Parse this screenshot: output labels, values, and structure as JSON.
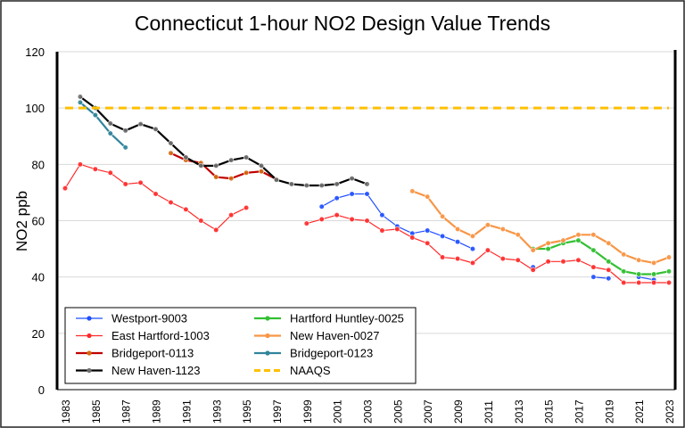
{
  "chart_data": {
    "type": "line",
    "title": "Connecticut 1-hour NO2 Design Value Trends",
    "xlabel": "",
    "ylabel": "NO2 ppb",
    "xlim": [
      1983,
      2023
    ],
    "ylim": [
      0,
      120
    ],
    "yticks": [
      0,
      20,
      40,
      60,
      80,
      100,
      120
    ],
    "xticks": [
      1983,
      1985,
      1987,
      1989,
      1991,
      1993,
      1995,
      1997,
      1999,
      2001,
      2003,
      2005,
      2007,
      2009,
      2011,
      2013,
      2015,
      2017,
      2019,
      2021,
      2023
    ],
    "grid": true,
    "legend": "bottom-left",
    "series": [
      {
        "name": "Westport-9003",
        "color": "#1f4fff",
        "width": 1.2,
        "points": [
          [
            2000,
            65
          ],
          [
            2001,
            68
          ],
          [
            2002,
            69.5
          ],
          [
            2003,
            69.5
          ],
          [
            2004,
            62
          ],
          [
            2005,
            58
          ],
          [
            2006,
            55.5
          ],
          [
            2007,
            56.5
          ],
          [
            2008,
            54.5
          ],
          [
            2009,
            52.5
          ],
          [
            2010,
            50
          ],
          null,
          [
            2014,
            43.5
          ],
          null,
          [
            2018,
            40
          ],
          [
            2019,
            39.5
          ],
          null,
          [
            2021,
            40
          ],
          [
            2022,
            39
          ]
        ]
      },
      {
        "name": "East Hartford-1003",
        "color": "#ff2a2a",
        "width": 1.2,
        "points": [
          [
            1983,
            71.5
          ],
          [
            1984,
            80
          ],
          [
            1985,
            78.3
          ],
          [
            1986,
            77
          ],
          [
            1987,
            73
          ],
          [
            1988,
            73.5
          ],
          [
            1989,
            69.5
          ],
          [
            1990,
            66.5
          ],
          [
            1991,
            64
          ],
          [
            1992,
            60
          ],
          [
            1993,
            56.7
          ],
          [
            1994,
            62
          ],
          [
            1995,
            64.6
          ],
          null,
          [
            1999,
            59
          ],
          [
            2000,
            60.5
          ],
          [
            2001,
            62
          ],
          [
            2002,
            60.5
          ],
          [
            2003,
            60
          ],
          [
            2004,
            56.5
          ],
          [
            2005,
            57
          ],
          [
            2006,
            54
          ],
          [
            2007,
            52
          ],
          [
            2008,
            47
          ],
          [
            2009,
            46.5
          ],
          [
            2010,
            45
          ],
          [
            2011,
            49.5
          ],
          [
            2012,
            46.5
          ],
          [
            2013,
            46
          ],
          [
            2014,
            42.5
          ],
          [
            2015,
            45.5
          ],
          [
            2016,
            45.5
          ],
          [
            2017,
            46
          ],
          [
            2018,
            43.5
          ],
          [
            2019,
            42.5
          ],
          [
            2020,
            38
          ],
          [
            2021,
            38
          ],
          [
            2022,
            38
          ],
          [
            2023,
            38
          ]
        ]
      },
      {
        "name": "Bridgeport-0113",
        "color": "#c00000",
        "marker": "#d46a10",
        "width": 2.2,
        "points": [
          [
            1990,
            84
          ],
          [
            1991,
            81.5
          ],
          [
            1992,
            80.5
          ],
          [
            1993,
            75.5
          ],
          [
            1994,
            75
          ],
          [
            1995,
            77
          ],
          [
            1996,
            77.5
          ],
          [
            1997,
            74.7
          ]
        ]
      },
      {
        "name": "New Haven-1123",
        "color": "#000000",
        "marker": "#707070",
        "width": 2.2,
        "points": [
          [
            1984,
            104
          ],
          [
            1985,
            100
          ],
          [
            1986,
            94.5
          ],
          [
            1987,
            92
          ],
          [
            1988,
            94.3
          ],
          [
            1989,
            92.5
          ],
          [
            1990,
            87.5
          ],
          [
            1991,
            82.5
          ],
          [
            1992,
            79.5
          ],
          [
            1993,
            79.5
          ],
          [
            1994,
            81.5
          ],
          [
            1995,
            82.5
          ],
          [
            1996,
            79.5
          ],
          [
            1997,
            74.5
          ],
          [
            1998,
            73
          ],
          [
            1999,
            72.5
          ],
          [
            2000,
            72.5
          ],
          [
            2001,
            73
          ],
          [
            2002,
            75
          ],
          [
            2003,
            73
          ]
        ]
      },
      {
        "name": "Hartford Huntley-0025",
        "color": "#33c033",
        "width": 2.2,
        "points": [
          [
            2014,
            50
          ],
          [
            2015,
            50
          ],
          [
            2016,
            52
          ],
          [
            2017,
            53
          ],
          [
            2018,
            49.5
          ],
          [
            2019,
            45.5
          ],
          [
            2020,
            42
          ],
          [
            2021,
            41
          ],
          [
            2022,
            41
          ],
          [
            2023,
            42
          ]
        ]
      },
      {
        "name": "New Haven-0027",
        "color": "#f79646",
        "width": 2.2,
        "points": [
          [
            2006,
            70.5
          ],
          [
            2007,
            68.5
          ],
          [
            2008,
            61.5
          ],
          [
            2009,
            57
          ],
          [
            2010,
            54.5
          ],
          [
            2011,
            58.5
          ],
          [
            2012,
            57
          ],
          [
            2013,
            55
          ],
          [
            2014,
            49.5
          ],
          [
            2015,
            52
          ],
          [
            2016,
            53
          ],
          [
            2017,
            55
          ],
          [
            2018,
            55
          ],
          [
            2019,
            52
          ],
          [
            2020,
            48
          ],
          [
            2021,
            46
          ],
          [
            2022,
            45
          ],
          [
            2023,
            47
          ]
        ]
      },
      {
        "name": "Bridgeport-0123",
        "color": "#31849b",
        "width": 2.2,
        "points": [
          [
            1984,
            102
          ],
          [
            1985,
            97.5
          ],
          [
            1986,
            91
          ],
          [
            1987,
            86
          ]
        ]
      },
      {
        "name": "NAAQS",
        "color": "#ffc000",
        "width": 3,
        "dashed": true,
        "points": [
          [
            1983,
            100
          ],
          [
            2023,
            100
          ]
        ]
      }
    ]
  }
}
